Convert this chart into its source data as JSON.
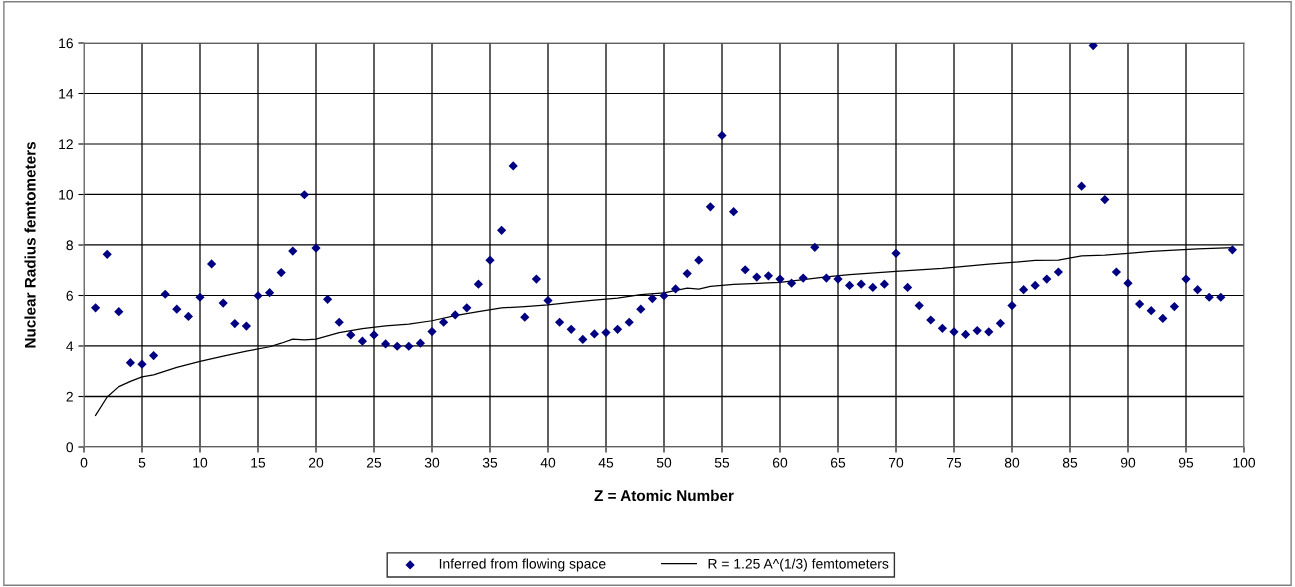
{
  "chart_data": {
    "type": "scatter",
    "xlabel": "Z = Atomic Number",
    "ylabel": "Nuclear Radius femtometers",
    "xlim": [
      0,
      100
    ],
    "xticks": [
      0,
      5,
      10,
      15,
      20,
      25,
      30,
      35,
      40,
      45,
      50,
      55,
      60,
      65,
      70,
      75,
      80,
      85,
      90,
      95,
      100
    ],
    "ylim": [
      0,
      16
    ],
    "yticks": [
      0,
      2,
      4,
      6,
      8,
      10,
      12,
      14,
      16
    ],
    "grid": true,
    "legend": "bottom",
    "series": [
      {
        "name": "Inferred from flowing space",
        "marker": "diamond",
        "color": "#000080",
        "x": [
          1,
          2,
          3,
          4,
          5,
          6,
          7,
          8,
          9,
          10,
          11,
          12,
          13,
          14,
          15,
          16,
          17,
          18,
          19,
          20,
          21,
          22,
          23,
          24,
          25,
          26,
          27,
          28,
          29,
          30,
          31,
          32,
          33,
          34,
          35,
          36,
          37,
          38,
          39,
          40,
          41,
          42,
          43,
          44,
          45,
          46,
          47,
          48,
          49,
          50,
          51,
          52,
          53,
          54,
          55,
          56,
          57,
          58,
          59,
          60,
          61,
          62,
          63,
          64,
          65,
          66,
          67,
          68,
          69,
          70,
          71,
          72,
          73,
          74,
          75,
          76,
          77,
          78,
          79,
          80,
          81,
          82,
          83,
          84,
          86,
          87,
          88,
          89,
          90,
          91,
          92,
          93,
          94,
          95,
          96,
          97,
          98,
          99
        ],
        "values": [
          5.51,
          7.63,
          5.36,
          3.34,
          3.28,
          3.62,
          6.05,
          5.46,
          5.17,
          5.93,
          7.25,
          5.7,
          4.89,
          4.79,
          5.99,
          6.11,
          6.91,
          7.76,
          9.99,
          7.88,
          5.85,
          4.94,
          4.44,
          4.19,
          4.44,
          4.08,
          3.99,
          3.99,
          4.11,
          4.57,
          4.94,
          5.23,
          5.51,
          6.45,
          7.4,
          8.58,
          11.13,
          5.14,
          6.65,
          5.8,
          4.94,
          4.66,
          4.26,
          4.48,
          4.53,
          4.66,
          4.94,
          5.46,
          5.88,
          5.99,
          6.26,
          6.87,
          7.4,
          9.51,
          12.34,
          9.32,
          7.02,
          6.73,
          6.78,
          6.65,
          6.49,
          6.69,
          7.91,
          6.69,
          6.65,
          6.4,
          6.45,
          6.32,
          6.45,
          7.67,
          6.32,
          5.6,
          5.03,
          4.7,
          4.56,
          4.46,
          4.61,
          4.56,
          4.9,
          5.6,
          6.23,
          6.4,
          6.65,
          6.93,
          10.33,
          15.9,
          9.8,
          6.93,
          6.49,
          5.66,
          5.4,
          5.09,
          5.56,
          6.65,
          6.23,
          5.93,
          5.93,
          7.81
        ]
      },
      {
        "name": "R = 1.25 A^(1/3) femtometers",
        "type": "line",
        "marker": "none",
        "line_style": "solid",
        "color": "#000000",
        "x": [
          1,
          2,
          3,
          4,
          5,
          6,
          8,
          10,
          12,
          14,
          16,
          17,
          18,
          19,
          20,
          22,
          24,
          26,
          28,
          30,
          32,
          34,
          36,
          38,
          40,
          42,
          44,
          46,
          48,
          50,
          52,
          53,
          54,
          56,
          60,
          64,
          66,
          70,
          74,
          78,
          80,
          82,
          84,
          86,
          88,
          90,
          92,
          94,
          96,
          99
        ],
        "values": [
          1.25,
          1.98,
          2.39,
          2.6,
          2.78,
          2.86,
          3.15,
          3.39,
          3.6,
          3.8,
          3.97,
          4.11,
          4.27,
          4.24,
          4.27,
          4.53,
          4.69,
          4.8,
          4.87,
          5.0,
          5.2,
          5.36,
          5.51,
          5.56,
          5.63,
          5.73,
          5.82,
          5.9,
          6.03,
          6.1,
          6.29,
          6.25,
          6.36,
          6.44,
          6.52,
          6.74,
          6.83,
          6.96,
          7.07,
          7.24,
          7.31,
          7.39,
          7.4,
          7.57,
          7.6,
          7.67,
          7.75,
          7.8,
          7.85,
          7.9
        ]
      }
    ]
  }
}
